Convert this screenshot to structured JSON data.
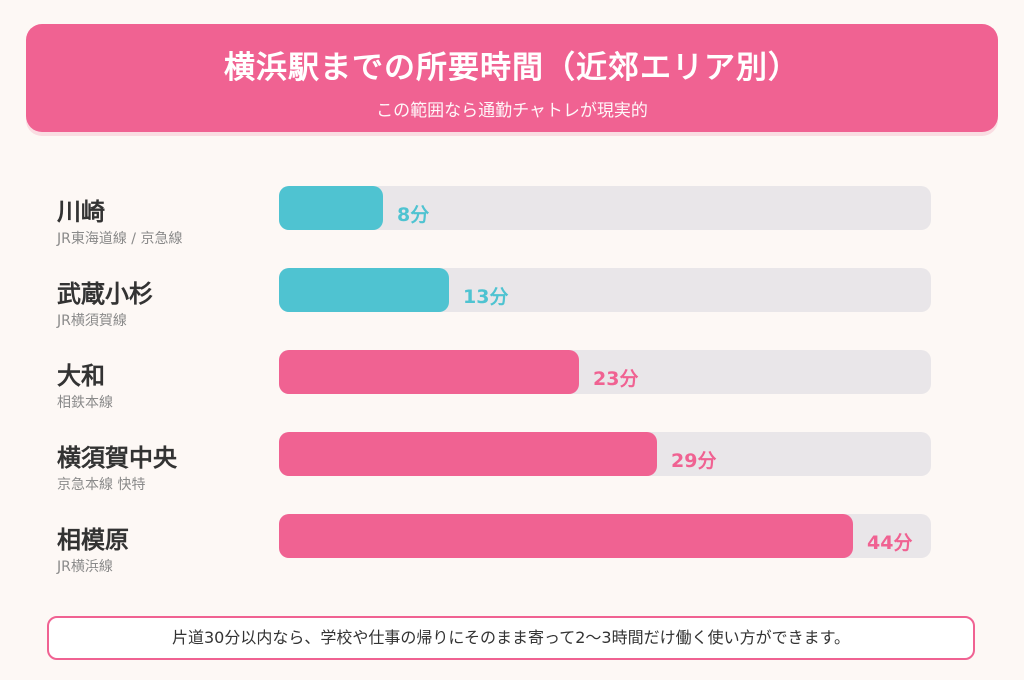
{
  "header": {
    "title": "横浜駅までの所要時間（近郊エリア別）",
    "subtitle": "この範囲なら通勤チャトレが現実的"
  },
  "colors": {
    "header": "#f06292",
    "teal": "#4fc3d1",
    "pink": "#f06292",
    "track": "#e9e6e9"
  },
  "chart_data": {
    "type": "bar",
    "orientation": "horizontal",
    "title": "横浜駅までの所要時間（近郊エリア別）",
    "subtitle": "この範囲なら通勤チャトレが現実的",
    "unit": "分",
    "xlim": [
      0,
      50
    ],
    "categories": [
      "川崎",
      "武蔵小杉",
      "大和",
      "横須賀中央",
      "相模原"
    ],
    "lines": [
      "JR東海道線 / 京急線",
      "JR横須賀線",
      "相鉄本線",
      "京急本線 快特",
      "JR横浜線"
    ],
    "values": [
      8,
      13,
      23,
      29,
      44
    ],
    "value_labels": [
      "8分",
      "13分",
      "23分",
      "29分",
      "44分"
    ],
    "bar_colors": [
      "#4fc3d1",
      "#4fc3d1",
      "#f06292",
      "#f06292",
      "#f06292"
    ]
  },
  "footer": {
    "note": "片道30分以内なら、学校や仕事の帰りにそのまま寄って2〜3時間だけ働く使い方ができます。"
  }
}
